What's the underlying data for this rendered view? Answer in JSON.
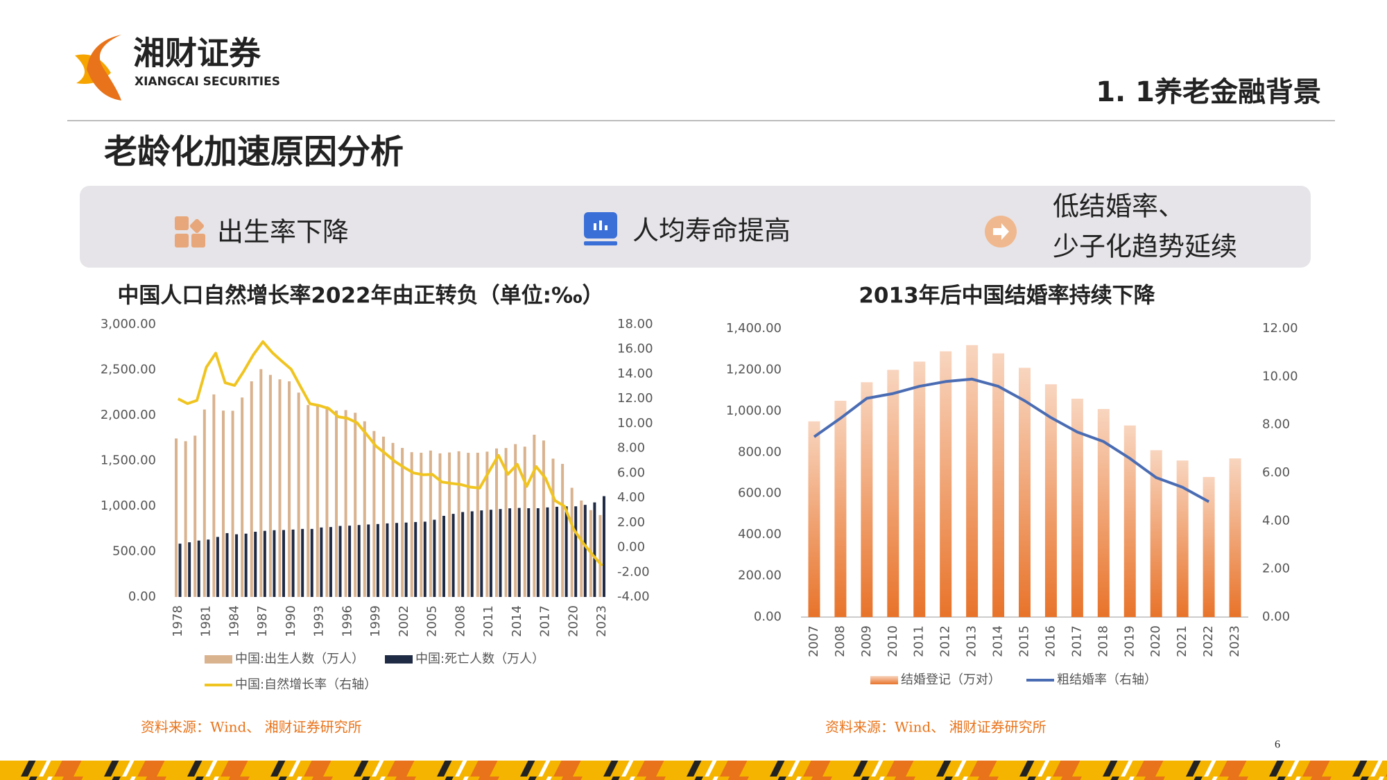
{
  "header": {
    "brand": "湘财证券",
    "brand_en": "XIANGCAI SECURITIES",
    "section": "1. 1养老金融背景",
    "title": "老龄化加速原因分析"
  },
  "banner": [
    {
      "lines": [
        "出生率下降"
      ]
    },
    {
      "lines": [
        "人均寿命提高"
      ]
    },
    {
      "lines": [
        "低结婚率、",
        "少子化趋势延续"
      ]
    }
  ],
  "chart_data": [
    {
      "type": "combo",
      "title": "中国人口自然增长率2022年由正转负（单位:‰）",
      "categories": [
        "1978",
        null,
        null,
        "1981",
        null,
        null,
        "1984",
        null,
        null,
        "1987",
        null,
        null,
        "1990",
        null,
        null,
        "1993",
        null,
        null,
        "1996",
        null,
        null,
        "1999",
        null,
        null,
        "2002",
        null,
        null,
        "2005",
        null,
        null,
        "2008",
        null,
        null,
        "2011",
        null,
        null,
        "2014",
        null,
        null,
        "2017",
        null,
        null,
        "2020",
        null,
        null,
        "2023"
      ],
      "series": [
        {
          "name": "中国:出生人数（万人）",
          "type": "bar",
          "color": "#d9b28e",
          "values": [
            1745,
            1715,
            1776,
            2064,
            2230,
            2052,
            2050,
            2196,
            2374,
            2508,
            2445,
            2396,
            2374,
            2250,
            2113,
            2120,
            2098,
            2052,
            2057,
            2028,
            1934,
            1827,
            1765,
            1696,
            1641,
            1594,
            1588,
            1612,
            1581,
            1591,
            1604,
            1587,
            1588,
            1600,
            1635,
            1640,
            1683,
            1655,
            1786,
            1723,
            1523,
            1465,
            1202,
            1062,
            956,
            902
          ]
        },
        {
          "name": "中国:死亡人数（万人）",
          "type": "bar",
          "color": "#1f2a44",
          "values": [
            587,
            602,
            621,
            632,
            661,
            703,
            690,
            697,
            718,
            728,
            735,
            737,
            742,
            749,
            749,
            765,
            770,
            782,
            785,
            792,
            798,
            803,
            810,
            815,
            819,
            825,
            829,
            850,
            893,
            915,
            935,
            943,
            953,
            960,
            968,
            976,
            980,
            977,
            977,
            986,
            993,
            998,
            998,
            1014,
            1041,
            1110
          ]
        },
        {
          "name": "中国:自然增长率（右轴）",
          "type": "line",
          "axis": "y2",
          "color": "#f0c420",
          "values": [
            12.0,
            11.61,
            11.87,
            14.55,
            15.68,
            13.29,
            13.08,
            14.26,
            15.57,
            16.61,
            15.73,
            15.04,
            14.39,
            12.98,
            11.6,
            11.45,
            11.21,
            10.55,
            10.42,
            10.06,
            9.14,
            8.18,
            7.58,
            6.95,
            6.45,
            6.01,
            5.87,
            5.89,
            5.28,
            5.17,
            5.08,
            4.87,
            4.79,
            6.13,
            7.43,
            5.9,
            6.71,
            4.93,
            6.53,
            5.58,
            3.78,
            3.32,
            1.45,
            0.34,
            -0.6,
            -1.48
          ]
        }
      ],
      "ylim": [
        0,
        3000
      ],
      "yticks": [
        {
          "value": 0,
          "label": "0.00"
        },
        {
          "value": 500,
          "label": "500.00"
        },
        {
          "value": 1000,
          "label": "1,000.00"
        },
        {
          "value": 1500,
          "label": "1,500.00"
        },
        {
          "value": 2000,
          "label": "2,000.00"
        },
        {
          "value": 2500,
          "label": "2,500.00"
        },
        {
          "value": 3000,
          "label": "3,000.00"
        }
      ],
      "y2lim": [
        -4,
        18
      ],
      "y2ticks": [
        {
          "value": -4,
          "label": "-4.00"
        },
        {
          "value": -2,
          "label": "-2.00"
        },
        {
          "value": 0,
          "label": "0.00"
        },
        {
          "value": 2,
          "label": "2.00"
        },
        {
          "value": 4,
          "label": "4.00"
        },
        {
          "value": 6,
          "label": "6.00"
        },
        {
          "value": 8,
          "label": "8.00"
        },
        {
          "value": 10,
          "label": "10.00"
        },
        {
          "value": 12,
          "label": "12.00"
        },
        {
          "value": 14,
          "label": "14.00"
        },
        {
          "value": 16,
          "label": "16.00"
        },
        {
          "value": 18,
          "label": "18.00"
        }
      ],
      "grid": false,
      "source": "资料来源：Wind、 湘财证券研究所"
    },
    {
      "type": "combo",
      "title": "2013年后中国结婚率持续下降",
      "categories": [
        "2007",
        "2008",
        "2009",
        "2010",
        "2011",
        "2012",
        "2013",
        "2014",
        "2015",
        "2016",
        "2017",
        "2018",
        "2019",
        "2020",
        "2021",
        "2022",
        "2023"
      ],
      "series": [
        {
          "name": "结婚登记（万对）",
          "type": "bar",
          "color": "#e8732a",
          "gradient": true,
          "values": [
            950,
            1050,
            1140,
            1200,
            1240,
            1290,
            1320,
            1280,
            1210,
            1130,
            1060,
            1010,
            930,
            810,
            760,
            680,
            770
          ]
        },
        {
          "name": "粗结婚率（右轴）",
          "type": "line",
          "axis": "y2",
          "color": "#4a6cb3",
          "values": [
            7.5,
            8.27,
            9.1,
            9.3,
            9.6,
            9.8,
            9.9,
            9.6,
            9.0,
            8.3,
            7.7,
            7.3,
            6.6,
            5.8,
            5.4,
            4.8,
            null
          ]
        }
      ],
      "ylim": [
        0,
        1400
      ],
      "yticks": [
        {
          "value": 0,
          "label": "0.00"
        },
        {
          "value": 200,
          "label": "200.00"
        },
        {
          "value": 400,
          "label": "400.00"
        },
        {
          "value": 600,
          "label": "600.00"
        },
        {
          "value": 800,
          "label": "800.00"
        },
        {
          "value": 1000,
          "label": "1,000.00"
        },
        {
          "value": 1200,
          "label": "1,200.00"
        },
        {
          "value": 1400,
          "label": "1,400.00"
        }
      ],
      "y2lim": [
        0,
        12
      ],
      "y2ticks": [
        {
          "value": 0,
          "label": "0.00"
        },
        {
          "value": 2,
          "label": "2.00"
        },
        {
          "value": 4,
          "label": "4.00"
        },
        {
          "value": 6,
          "label": "6.00"
        },
        {
          "value": 8,
          "label": "8.00"
        },
        {
          "value": 10,
          "label": "10.00"
        },
        {
          "value": 12,
          "label": "12.00"
        }
      ],
      "grid": false,
      "source": "资料来源：Wind、 湘财证券研究所"
    }
  ],
  "page_number": 6
}
